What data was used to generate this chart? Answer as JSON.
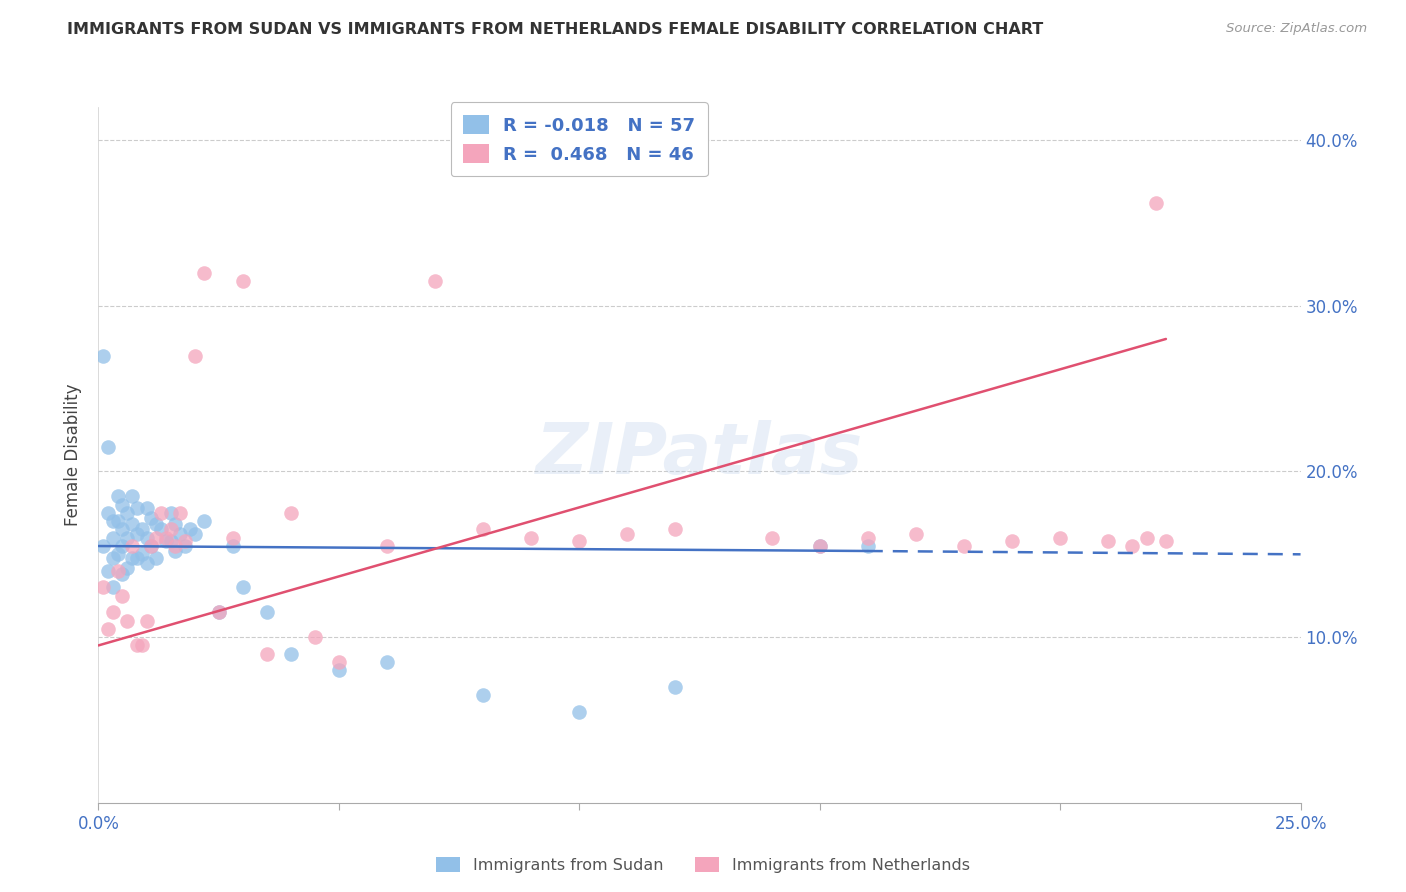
{
  "title": "IMMIGRANTS FROM SUDAN VS IMMIGRANTS FROM NETHERLANDS FEMALE DISABILITY CORRELATION CHART",
  "source": "Source: ZipAtlas.com",
  "ylabel": "Female Disability",
  "xlim": [
    0.0,
    0.25
  ],
  "ylim": [
    0.0,
    0.42
  ],
  "xtick_vals": [
    0.0,
    0.05,
    0.1,
    0.15,
    0.2,
    0.25
  ],
  "xtick_labels": [
    "0.0%",
    "",
    "",
    "",
    "",
    "25.0%"
  ],
  "ytick_vals": [
    0.1,
    0.2,
    0.3,
    0.4
  ],
  "ytick_labels": [
    "10.0%",
    "20.0%",
    "30.0%",
    "40.0%"
  ],
  "sudan_color": "#92C0E8",
  "netherlands_color": "#F4A5BC",
  "sudan_label": "Immigrants from Sudan",
  "netherlands_label": "Immigrants from Netherlands",
  "R_sudan": -0.018,
  "N_sudan": 57,
  "R_netherlands": 0.468,
  "N_netherlands": 46,
  "watermark": "ZIPatlas",
  "sudan_line_color": "#4472C4",
  "netherlands_line_color": "#E05070",
  "sudan_scatter_x": [
    0.001,
    0.001,
    0.002,
    0.002,
    0.002,
    0.003,
    0.003,
    0.003,
    0.003,
    0.004,
    0.004,
    0.004,
    0.005,
    0.005,
    0.005,
    0.005,
    0.006,
    0.006,
    0.006,
    0.007,
    0.007,
    0.007,
    0.008,
    0.008,
    0.008,
    0.009,
    0.009,
    0.01,
    0.01,
    0.01,
    0.011,
    0.011,
    0.012,
    0.012,
    0.013,
    0.014,
    0.015,
    0.015,
    0.016,
    0.016,
    0.017,
    0.018,
    0.019,
    0.02,
    0.022,
    0.025,
    0.028,
    0.03,
    0.035,
    0.04,
    0.05,
    0.06,
    0.08,
    0.1,
    0.12,
    0.15,
    0.16
  ],
  "sudan_scatter_y": [
    0.27,
    0.155,
    0.215,
    0.175,
    0.14,
    0.17,
    0.16,
    0.148,
    0.13,
    0.185,
    0.17,
    0.15,
    0.18,
    0.165,
    0.155,
    0.138,
    0.175,
    0.16,
    0.142,
    0.185,
    0.168,
    0.148,
    0.178,
    0.162,
    0.148,
    0.165,
    0.15,
    0.178,
    0.16,
    0.145,
    0.172,
    0.155,
    0.168,
    0.148,
    0.165,
    0.158,
    0.175,
    0.158,
    0.168,
    0.152,
    0.162,
    0.155,
    0.165,
    0.162,
    0.17,
    0.115,
    0.155,
    0.13,
    0.115,
    0.09,
    0.08,
    0.085,
    0.065,
    0.055,
    0.07,
    0.155,
    0.155
  ],
  "netherlands_scatter_x": [
    0.001,
    0.002,
    0.003,
    0.004,
    0.005,
    0.006,
    0.007,
    0.008,
    0.009,
    0.01,
    0.011,
    0.012,
    0.013,
    0.014,
    0.015,
    0.016,
    0.017,
    0.018,
    0.02,
    0.022,
    0.025,
    0.028,
    0.03,
    0.035,
    0.04,
    0.045,
    0.05,
    0.06,
    0.07,
    0.08,
    0.09,
    0.1,
    0.11,
    0.12,
    0.14,
    0.15,
    0.16,
    0.17,
    0.18,
    0.19,
    0.2,
    0.21,
    0.215,
    0.218,
    0.22,
    0.222
  ],
  "netherlands_scatter_y": [
    0.13,
    0.105,
    0.115,
    0.14,
    0.125,
    0.11,
    0.155,
    0.095,
    0.095,
    0.11,
    0.155,
    0.16,
    0.175,
    0.16,
    0.165,
    0.155,
    0.175,
    0.158,
    0.27,
    0.32,
    0.115,
    0.16,
    0.315,
    0.09,
    0.175,
    0.1,
    0.085,
    0.155,
    0.315,
    0.165,
    0.16,
    0.158,
    0.162,
    0.165,
    0.16,
    0.155,
    0.16,
    0.162,
    0.155,
    0.158,
    0.16,
    0.158,
    0.155,
    0.16,
    0.362,
    0.158
  ],
  "sudan_line_x0": 0.0,
  "sudan_line_x1": 0.16,
  "sudan_line_dash_x0": 0.16,
  "sudan_line_dash_x1": 0.25,
  "sudan_line_y_at_0": 0.155,
  "sudan_line_y_at_016": 0.152,
  "sudan_line_y_at_025": 0.15,
  "netherlands_line_x0": 0.0,
  "netherlands_line_x1": 0.222,
  "netherlands_line_y_at_0": 0.095,
  "netherlands_line_y_at_222": 0.28
}
